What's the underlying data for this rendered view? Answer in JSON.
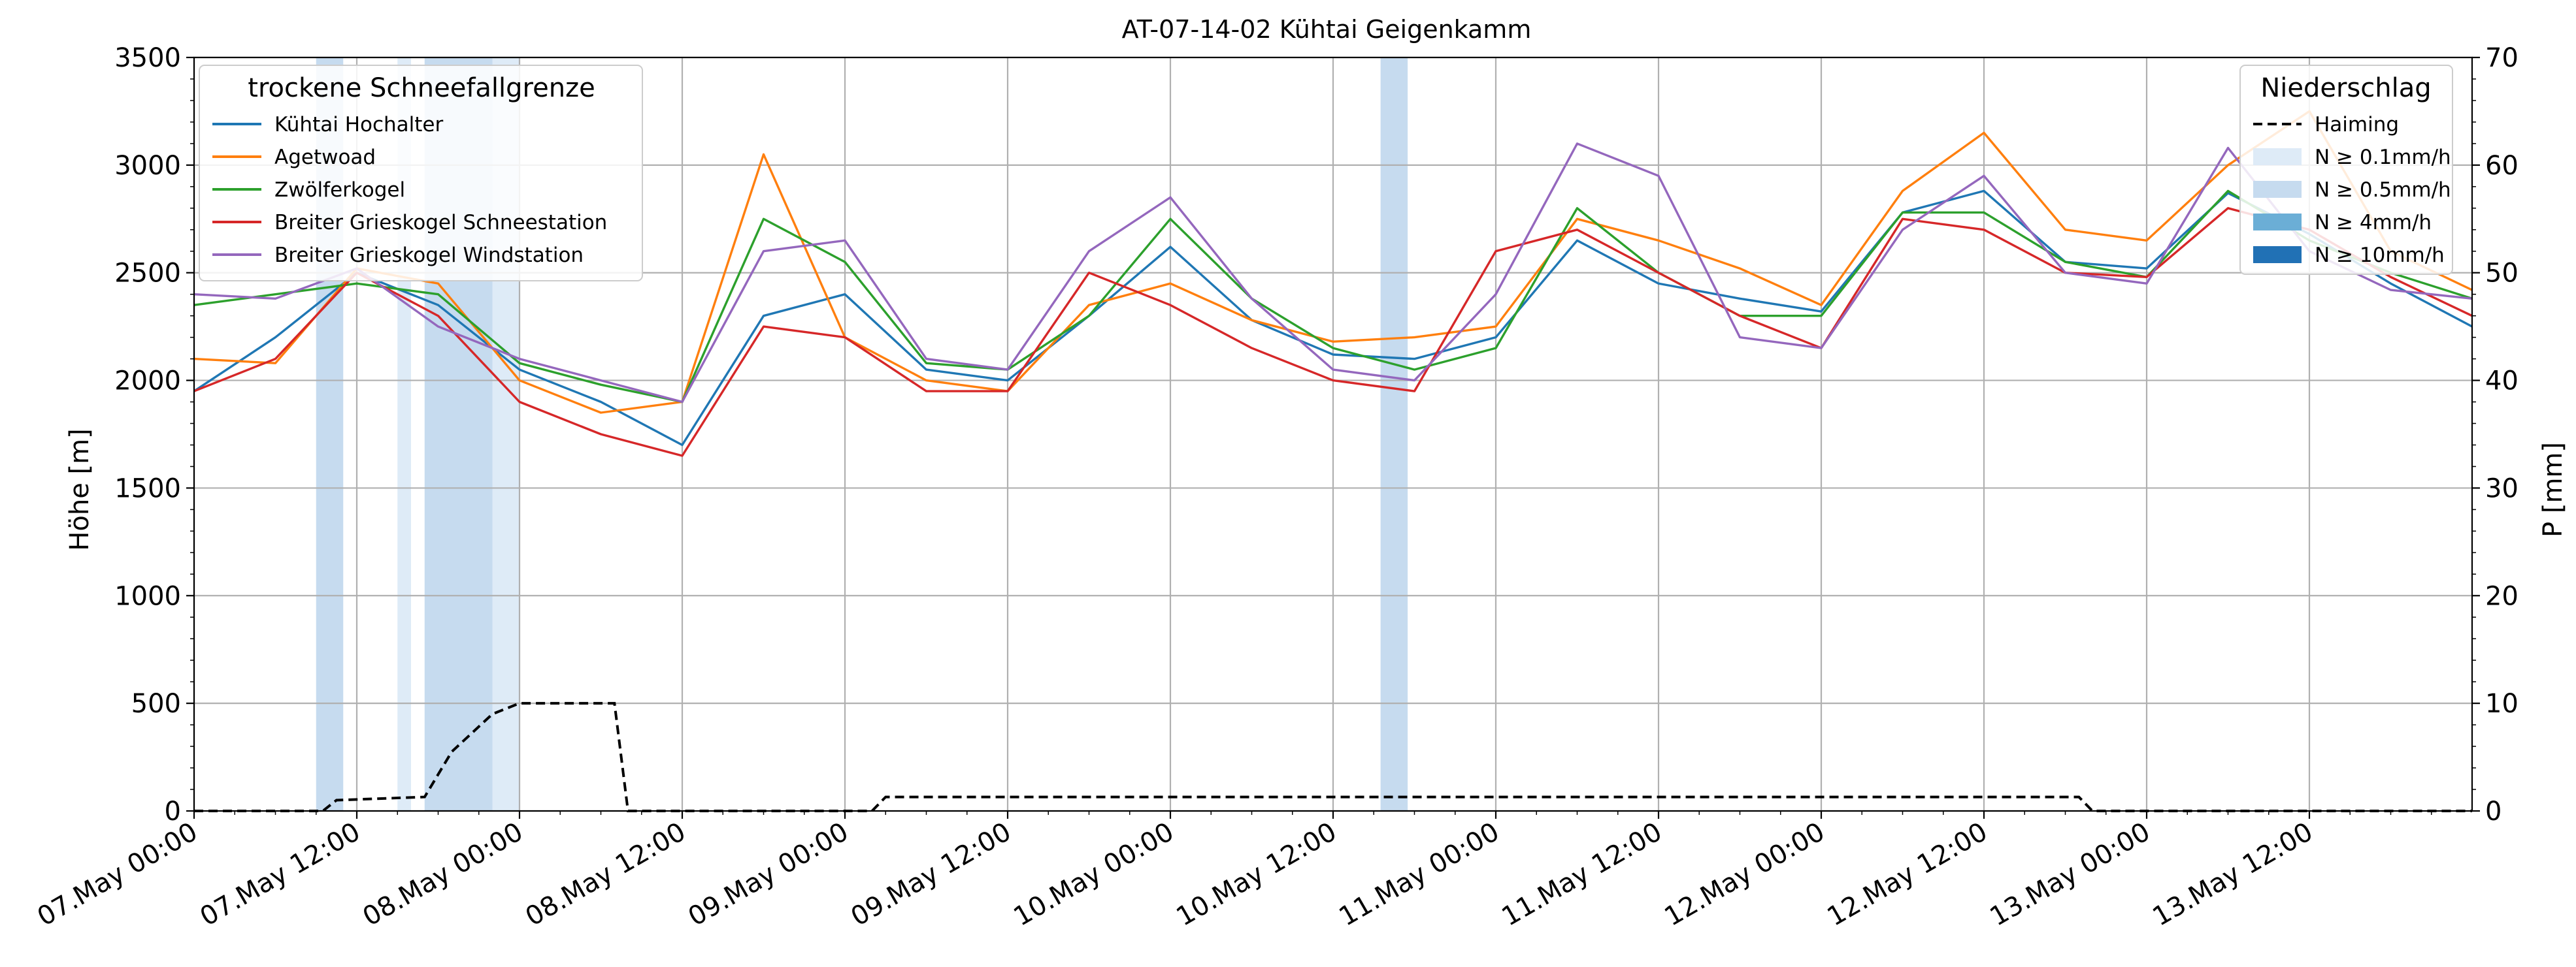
{
  "chart_data": {
    "type": "line",
    "title": "AT-07-14-02 Kühtai Geigenkamm",
    "ylabel": "Höhe [m]",
    "ylabel_right": "P [mm]",
    "ylim": [
      0,
      3500
    ],
    "ylim_right": [
      0,
      70
    ],
    "xlim": [
      "2025-05-07 00:00",
      "2025-05-14 00:00"
    ],
    "x_ticks": [
      "07.May 00:00",
      "07.May 12:00",
      "08.May 00:00",
      "08.May 12:00",
      "09.May 00:00",
      "09.May 12:00",
      "10.May 00:00",
      "10.May 12:00",
      "11.May 00:00",
      "11.May 12:00",
      "12.May 00:00",
      "12.May 12:00",
      "13.May 00:00",
      "13.May 12:00"
    ],
    "y_ticks": [
      0,
      500,
      1000,
      1500,
      2000,
      2500,
      3000,
      3500
    ],
    "y_ticks_right": [
      0,
      10,
      20,
      30,
      40,
      50,
      60,
      70
    ],
    "grid": true,
    "legend_left": {
      "title": "trockene Schneefallgrenze",
      "placement": "top-left"
    },
    "legend_right": {
      "title": "Niederschlag",
      "placement": "top-right",
      "items": [
        {
          "label": "Haiming",
          "style": "dashed",
          "color": "#000000"
        },
        {
          "label": "N ≥ 0.1mm/h",
          "color": "#deebf7"
        },
        {
          "label": "N ≥ 0.5mm/h",
          "color": "#c6dbef"
        },
        {
          "label": "N ≥ 4mm/h",
          "color": "#6baed6"
        },
        {
          "label": "N ≥ 10mm/h",
          "color": "#2171b5"
        }
      ]
    },
    "series": [
      {
        "name": "Kühtai Hochalter",
        "color": "#1f77b4",
        "x": [
          0,
          6,
          12,
          18,
          24,
          30,
          36,
          42,
          48,
          54,
          60,
          66,
          72,
          78,
          84,
          90,
          96,
          102,
          108,
          114,
          120,
          126,
          132,
          138,
          144,
          150,
          156,
          162,
          168
        ],
        "y": [
          1950,
          2200,
          2500,
          2350,
          2050,
          1900,
          1700,
          2300,
          2400,
          2050,
          2000,
          2300,
          2620,
          2280,
          2120,
          2100,
          2200,
          2650,
          2450,
          2380,
          2320,
          2780,
          2880,
          2550,
          2520,
          2870,
          2680,
          2450,
          2250
        ]
      },
      {
        "name": "Agetwoad",
        "color": "#ff7f0e",
        "x": [
          0,
          6,
          12,
          18,
          24,
          30,
          36,
          42,
          48,
          54,
          60,
          66,
          72,
          78,
          84,
          90,
          96,
          102,
          108,
          114,
          120,
          126,
          132,
          138,
          144,
          150,
          156,
          162,
          168
        ],
        "y": [
          2100,
          2080,
          2520,
          2450,
          2000,
          1850,
          1900,
          3050,
          2200,
          2000,
          1950,
          2350,
          2450,
          2280,
          2180,
          2200,
          2250,
          2750,
          2650,
          2520,
          2350,
          2880,
          3150,
          2700,
          2650,
          3000,
          3250,
          2600,
          2420
        ]
      },
      {
        "name": "Zwölferkogel",
        "color": "#2ca02c",
        "x": [
          0,
          6,
          12,
          18,
          24,
          30,
          36,
          42,
          48,
          54,
          60,
          66,
          72,
          78,
          84,
          90,
          96,
          102,
          108,
          114,
          120,
          126,
          132,
          138,
          144,
          150,
          156,
          162,
          168
        ],
        "y": [
          2350,
          2400,
          2450,
          2400,
          2080,
          1980,
          1900,
          2750,
          2550,
          2080,
          2050,
          2300,
          2750,
          2380,
          2150,
          2050,
          2150,
          2800,
          2500,
          2300,
          2300,
          2780,
          2780,
          2550,
          2480,
          2880,
          2650,
          2500,
          2380
        ]
      },
      {
        "name": "Breiter Grieskogel Schneestation",
        "color": "#d62728",
        "x": [
          0,
          6,
          12,
          18,
          24,
          30,
          36,
          42,
          48,
          54,
          60,
          66,
          72,
          78,
          84,
          90,
          96,
          102,
          108,
          114,
          120,
          126,
          132,
          138,
          144,
          150,
          156,
          162,
          168
        ],
        "y": [
          1950,
          2100,
          2500,
          2300,
          1900,
          1750,
          1650,
          2250,
          2200,
          1950,
          1950,
          2500,
          2350,
          2150,
          2000,
          1950,
          2600,
          2700,
          2500,
          2300,
          2150,
          2750,
          2700,
          2500,
          2480,
          2800,
          2700,
          2480,
          2300
        ]
      },
      {
        "name": "Breiter Grieskogel Windstation",
        "color": "#9467bd",
        "x": [
          0,
          6,
          12,
          18,
          24,
          30,
          36,
          42,
          48,
          54,
          60,
          66,
          72,
          78,
          84,
          90,
          96,
          102,
          108,
          114,
          120,
          126,
          132,
          138,
          144,
          150,
          156,
          162,
          168
        ],
        "y": [
          2400,
          2380,
          2520,
          2250,
          2100,
          2000,
          1900,
          2600,
          2650,
          2100,
          2050,
          2600,
          2850,
          2380,
          2050,
          2000,
          2400,
          3100,
          2950,
          2200,
          2150,
          2700,
          2950,
          2500,
          2450,
          3080,
          2600,
          2420,
          2380
        ]
      }
    ],
    "precipitation": {
      "name": "Haiming",
      "unit": "mm",
      "x": [
        0,
        9.5,
        10.5,
        17,
        19,
        22,
        24,
        31,
        32,
        50,
        51,
        139,
        140,
        168
      ],
      "y": [
        0,
        0,
        1,
        1.3,
        5.5,
        9,
        10,
        10,
        0,
        0,
        1.3,
        1.3,
        0,
        0
      ]
    },
    "precip_bands": [
      {
        "level": "N ≥ 0.5mm/h",
        "start": 9.0,
        "end": 11.0
      },
      {
        "level": "N ≥ 0.1mm/h",
        "start": 15.0,
        "end": 16.0
      },
      {
        "level": "N ≥ 0.5mm/h",
        "start": 17.0,
        "end": 22.0
      },
      {
        "level": "N ≥ 0.1mm/h",
        "start": 22.0,
        "end": 24.0
      },
      {
        "level": "N ≥ 0.5mm/h",
        "start": 87.5,
        "end": 89.5
      }
    ]
  }
}
